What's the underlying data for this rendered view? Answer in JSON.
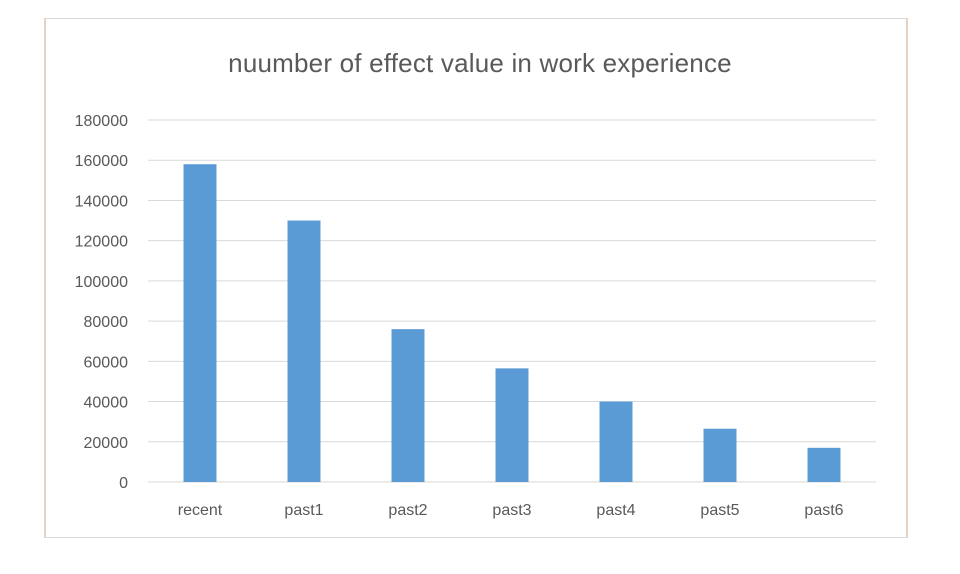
{
  "chart_data": {
    "type": "bar",
    "title": "nuumber of effect value in work experience",
    "xlabel": "",
    "ylabel": "",
    "categories": [
      "recent",
      "past1",
      "past2",
      "past3",
      "past4",
      "past5",
      "past6"
    ],
    "values": [
      158000,
      130000,
      76000,
      56500,
      40000,
      26500,
      17000
    ],
    "ylim": [
      0,
      180000
    ],
    "yticks": [
      "0",
      "20000",
      "40000",
      "60000",
      "80000",
      "100000",
      "120000",
      "140000",
      "160000",
      "180000"
    ],
    "grid": true,
    "legend": "none",
    "colors": {
      "bar": "#5b9bd5",
      "grid": "#d9d9d9",
      "text": "#595959"
    }
  }
}
